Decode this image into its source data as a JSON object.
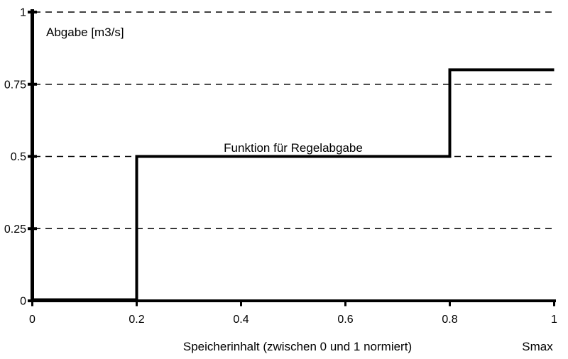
{
  "chart_data": {
    "type": "line",
    "subtype": "step-function",
    "title": "",
    "y_axis_unit_label": "Abgabe [m3/s]",
    "xlabel": "Speicherinhalt (zwischen 0 und 1 normiert)",
    "x_axis_max_label": "Smax",
    "annotation": "Funktion für Regelabgabe",
    "xlim": [
      0,
      1
    ],
    "ylim": [
      0,
      1
    ],
    "x_ticks": [
      0,
      0.2,
      0.4,
      0.6,
      0.8,
      1
    ],
    "x_tick_labels": [
      "0",
      "0.2",
      "0.4",
      "0.6",
      "0.8",
      "1"
    ],
    "y_ticks": [
      0,
      0.25,
      0.5,
      0.75,
      1
    ],
    "y_tick_labels": [
      "0",
      "0.25",
      "0.5",
      "0.75",
      "1"
    ],
    "grid": "horizontal-dashed",
    "legend": "none",
    "series": [
      {
        "name": "Funktion für Regelabgabe",
        "points": [
          [
            0,
            0
          ],
          [
            0.2,
            0
          ],
          [
            0.2,
            0.5
          ],
          [
            0.8,
            0.5
          ],
          [
            0.8,
            0.8
          ],
          [
            1,
            0.8
          ]
        ],
        "color": "#000000"
      }
    ]
  },
  "colors": {
    "background": "#ffffff",
    "axis": "#000000",
    "grid": "#000000",
    "line": "#000000",
    "text": "#000000"
  }
}
